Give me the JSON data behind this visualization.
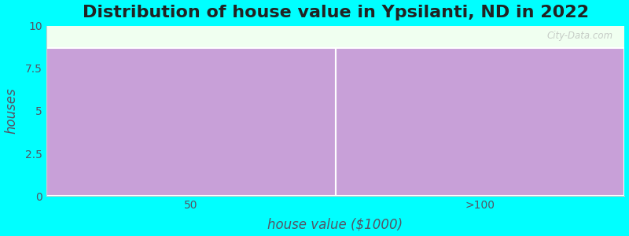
{
  "title": "Distribution of house value in Ypsilanti, ND in 2022",
  "categories": [
    "50",
    ">100"
  ],
  "values": [
    8.7,
    8.7
  ],
  "bar_color": "#c8a0d8",
  "background_color": "#00ffff",
  "plot_bg_color": "#f0fff0",
  "xlabel": "house value ($1000)",
  "ylabel": "houses",
  "ylim": [
    0,
    10
  ],
  "yticks": [
    0,
    2.5,
    5,
    7.5,
    10
  ],
  "title_fontsize": 16,
  "axis_label_fontsize": 12,
  "bar_width": 1.0,
  "watermark": "City-Data.com",
  "label_color": "#555566",
  "tick_color": "#555566"
}
